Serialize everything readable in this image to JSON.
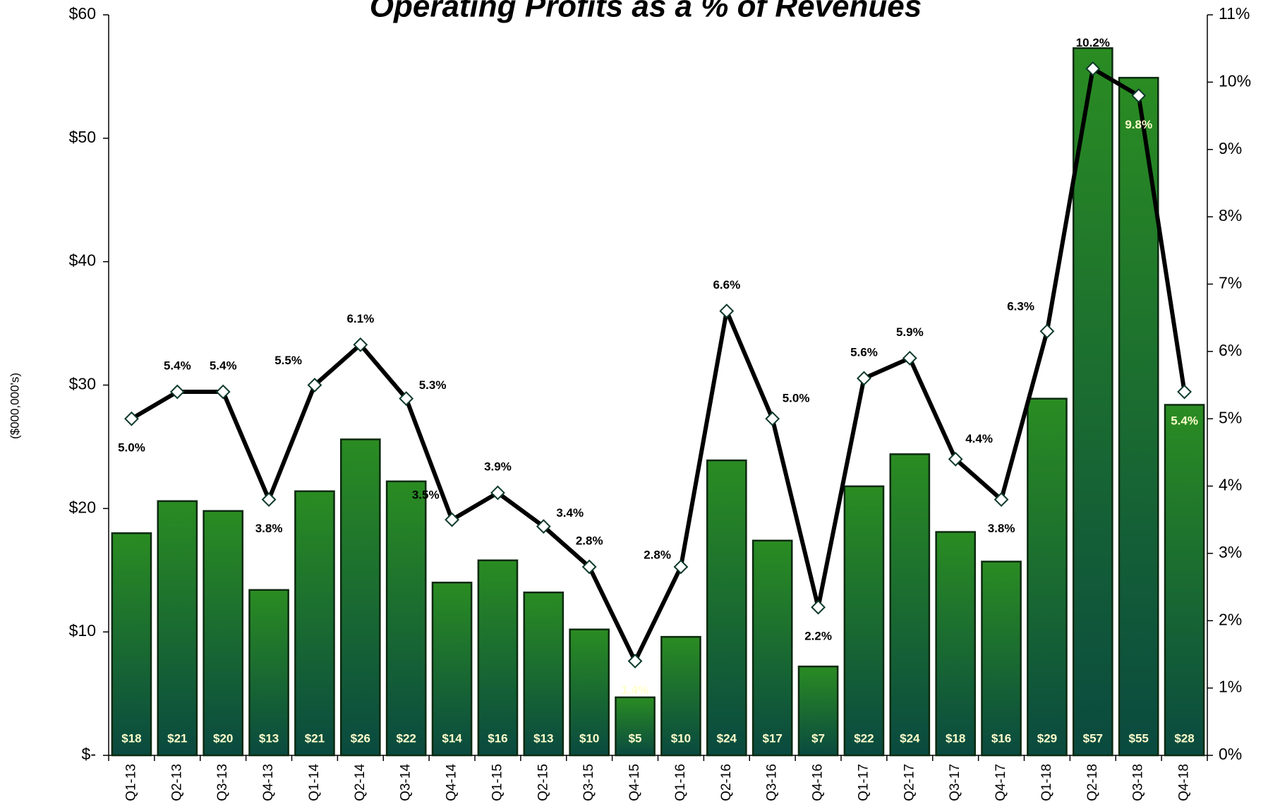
{
  "chart_data": {
    "type": "bar",
    "title": "Operating Profits as a % of Revenues",
    "ylabel": "($000,000's)",
    "categories": [
      "Q1-13",
      "Q2-13",
      "Q3-13",
      "Q4-13",
      "Q1-14",
      "Q2-14",
      "Q3-14",
      "Q4-14",
      "Q1-15",
      "Q2-15",
      "Q3-15",
      "Q4-15",
      "Q1-16",
      "Q2-16",
      "Q3-16",
      "Q4-16",
      "Q1-17",
      "Q2-17",
      "Q3-17",
      "Q4-17",
      "Q1-18",
      "Q2-18",
      "Q3-18",
      "Q4-18"
    ],
    "series": [
      {
        "type": "bar",
        "color": "#1f7a24",
        "values": [
          18.0,
          20.6,
          19.8,
          13.4,
          21.4,
          25.6,
          22.2,
          14.0,
          15.8,
          13.2,
          10.2,
          4.7,
          9.6,
          23.9,
          17.4,
          7.2,
          21.8,
          24.4,
          18.1,
          15.7,
          28.9,
          57.3,
          54.9,
          28.4
        ],
        "value_labels": [
          "$18",
          "$21",
          "$20",
          "$13",
          "$21",
          "$26",
          "$22",
          "$14",
          "$16",
          "$13",
          "$10",
          "$5",
          "$10",
          "$24",
          "$17",
          "$7",
          "$22",
          "$24",
          "$18",
          "$16",
          "$29",
          "$57",
          "$55",
          "$28"
        ]
      },
      {
        "type": "line",
        "axis": "y2",
        "color": "#000000",
        "values": [
          5.0,
          5.4,
          5.4,
          3.8,
          5.5,
          6.1,
          5.3,
          3.5,
          3.9,
          3.4,
          2.8,
          1.4,
          2.8,
          6.6,
          5.0,
          2.2,
          5.6,
          5.9,
          4.4,
          3.8,
          6.3,
          10.2,
          9.8,
          5.4
        ],
        "value_labels": [
          "5.0%",
          "5.4%",
          "5.4%",
          "3.8%",
          "5.5%",
          "6.1%",
          "5.3%",
          "3.5%",
          "3.9%",
          "3.4%",
          "2.8%",
          "1.4%",
          "2.8%",
          "6.6%",
          "5.0%",
          "2.2%",
          "5.6%",
          "5.9%",
          "4.4%",
          "3.8%",
          "6.3%",
          "10.2%",
          "9.8%",
          "5.4%"
        ]
      }
    ],
    "ylim": [
      0,
      60
    ],
    "yticks": [
      {
        "value": 0,
        "label": "$-"
      },
      {
        "value": 10,
        "label": "$10"
      },
      {
        "value": 20,
        "label": "$20"
      },
      {
        "value": 30,
        "label": "$30"
      },
      {
        "value": 40,
        "label": "$40"
      },
      {
        "value": 50,
        "label": "$50"
      },
      {
        "value": 60,
        "label": "$60"
      }
    ],
    "y2lim": [
      0,
      11
    ],
    "y2ticks": [
      {
        "value": 0,
        "label": "0%"
      },
      {
        "value": 1,
        "label": "1%"
      },
      {
        "value": 2,
        "label": "2%"
      },
      {
        "value": 3,
        "label": "3%"
      },
      {
        "value": 4,
        "label": "4%"
      },
      {
        "value": 5,
        "label": "5%"
      },
      {
        "value": 6,
        "label": "6%"
      },
      {
        "value": 7,
        "label": "7%"
      },
      {
        "value": 8,
        "label": "8%"
      },
      {
        "value": 9,
        "label": "9%"
      },
      {
        "value": 10,
        "label": "10%"
      },
      {
        "value": 11,
        "label": "11%"
      }
    ],
    "grid": false
  }
}
